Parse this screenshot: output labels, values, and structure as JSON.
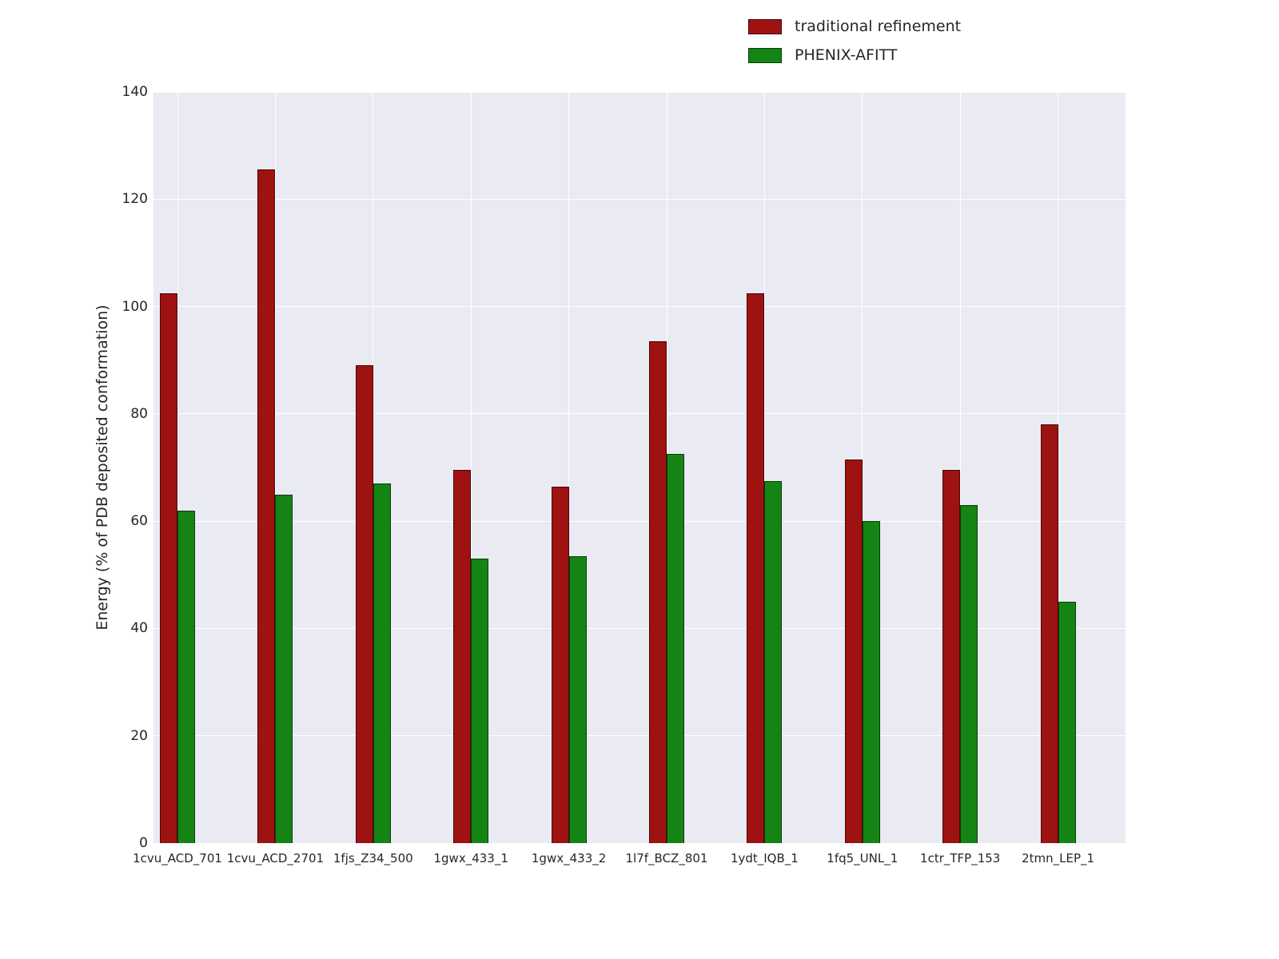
{
  "chart_data": {
    "type": "bar",
    "title": "",
    "xlabel": "",
    "ylabel": "Energy (% of PDB deposited conformation)",
    "ylim": [
      0,
      140
    ],
    "yticks": [
      0,
      20,
      40,
      60,
      80,
      100,
      120,
      140
    ],
    "grid": true,
    "plot_background": "#eaeaf2",
    "grid_color": "#ffffff",
    "legend_position": "upper right",
    "categories": [
      "1cvu_ACD_701",
      "1cvu_ACD_2701",
      "1fjs_Z34_500",
      "1gwx_433_1",
      "1gwx_433_2",
      "1l7f_BCZ_801",
      "1ydt_IQB_1",
      "1fq5_UNL_1",
      "1ctr_TFP_153",
      "2tmn_LEP_1"
    ],
    "series": [
      {
        "name": "traditional refinement",
        "color": "#9e1212",
        "values": [
          102.5,
          125.5,
          89,
          69.5,
          66.5,
          93.5,
          102.5,
          71.5,
          69.5,
          78
        ]
      },
      {
        "name": "PHENIX-AFITT",
        "color": "#148414",
        "values": [
          62,
          65,
          67,
          53,
          53.5,
          72.5,
          67.5,
          60,
          63,
          45
        ]
      }
    ]
  }
}
